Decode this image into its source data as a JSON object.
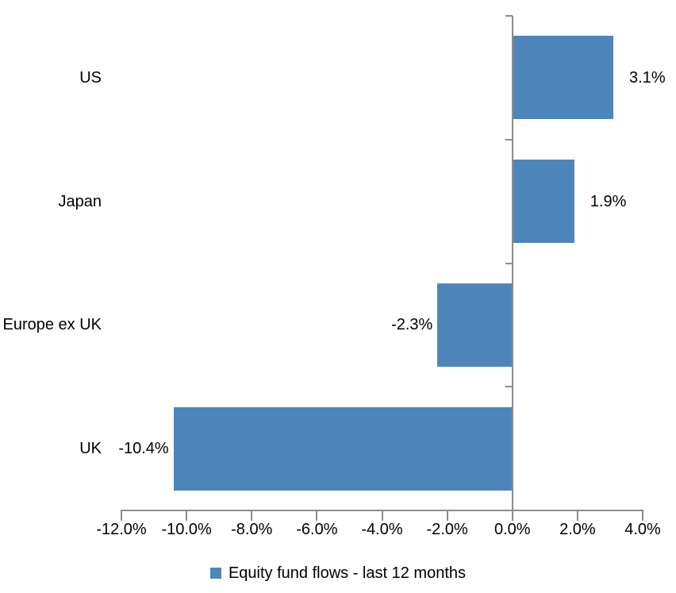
{
  "chart_data": {
    "type": "bar",
    "orientation": "horizontal",
    "title": "",
    "categories": [
      "US",
      "Japan",
      "Europe ex UK",
      "UK"
    ],
    "values": [
      3.1,
      1.9,
      -2.3,
      -10.4
    ],
    "data_labels": [
      "3.1%",
      "1.9%",
      "-2.3%",
      "-10.4%"
    ],
    "series_name": "Equity fund flows - last 12 months",
    "xlabel": "",
    "ylabel": "",
    "xlim": [
      -12,
      4
    ],
    "x_tick_step": 2,
    "x_tick_labels": [
      "-12.0%",
      "-10.0%",
      "-8.0%",
      "-6.0%",
      "-4.0%",
      "-2.0%",
      "0.0%",
      "2.0%",
      "4.0%"
    ],
    "grid": false,
    "legend_position": "bottom",
    "colors": {
      "bar": "#4e86bc",
      "axis": "#8c8c8c",
      "text": "#000000"
    }
  },
  "legend": {
    "label": "Equity fund flows - last 12 months",
    "marker_color": "#4e86bc"
  }
}
